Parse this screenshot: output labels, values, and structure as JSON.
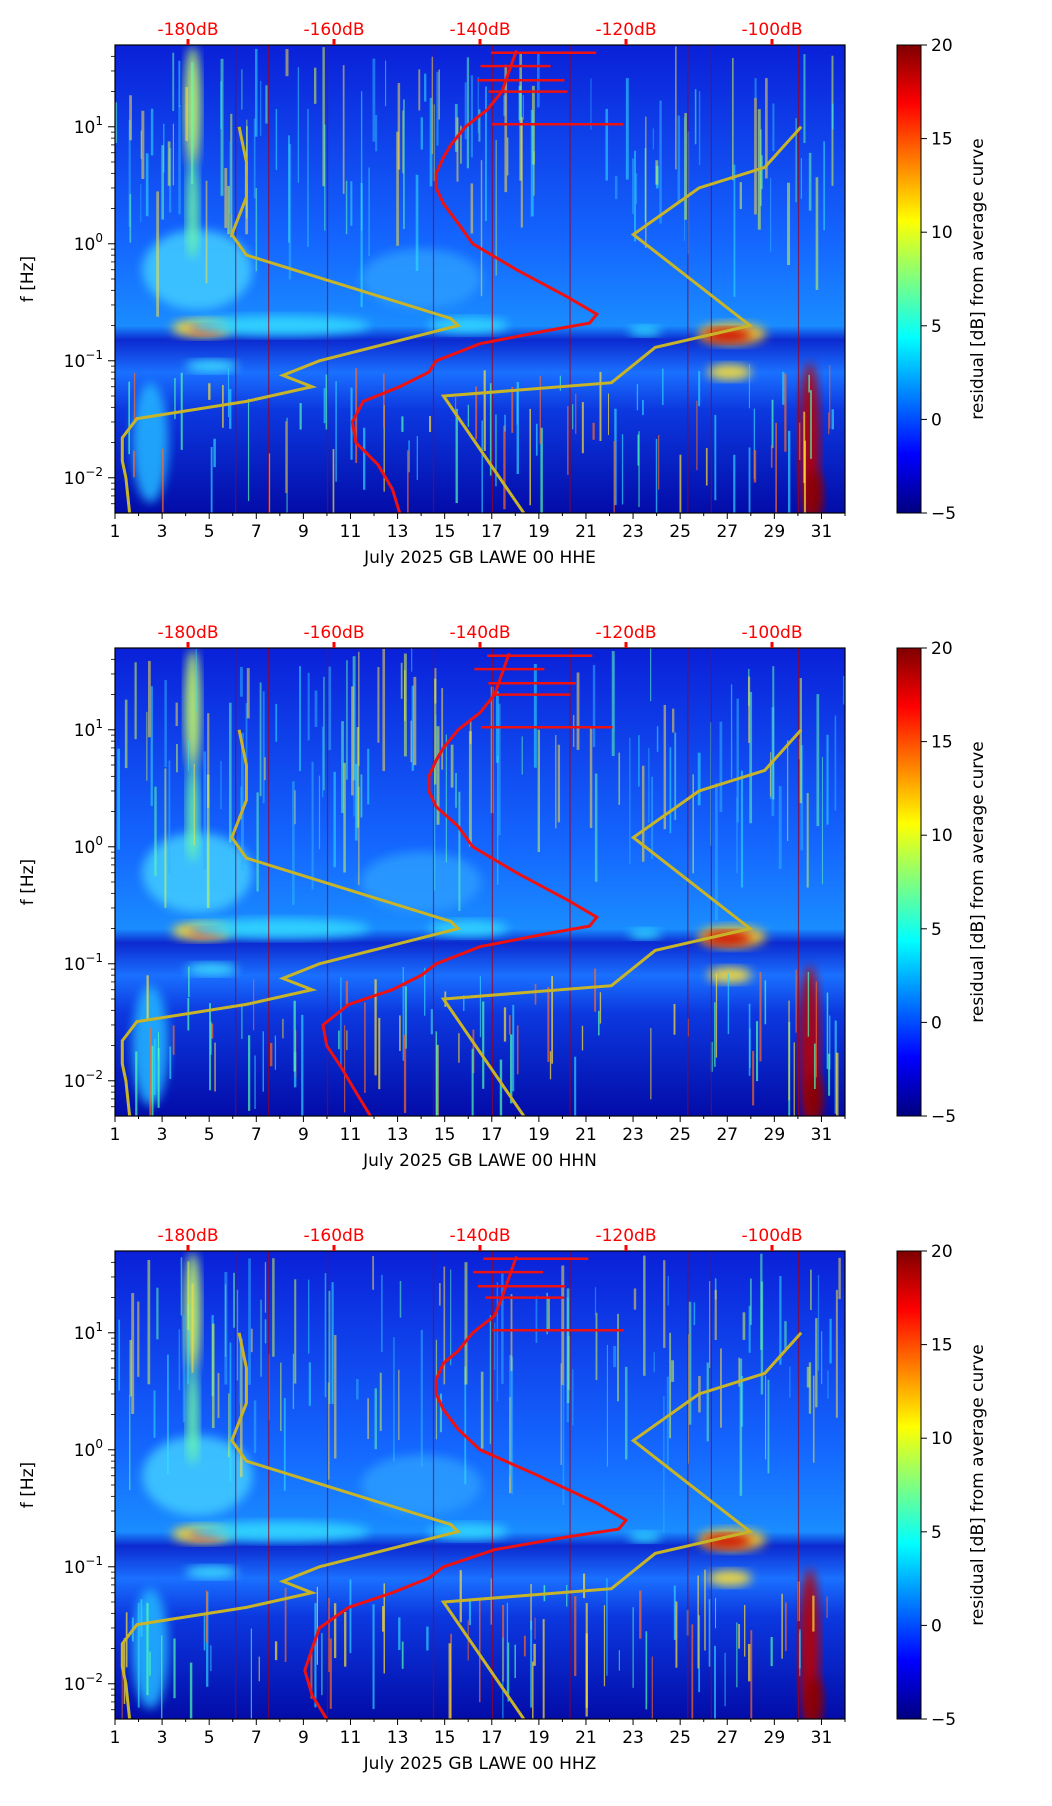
{
  "colors": {
    "db_axis": "#ff0000",
    "median_curve": "#ee1111",
    "noise_model": "#c8b428",
    "axis": "#000000"
  },
  "colormap": {
    "name": "jet",
    "stops": [
      "#00007f",
      "#0000ff",
      "#007fff",
      "#00ffff",
      "#7fff7f",
      "#ffff00",
      "#ff7f00",
      "#ff0000",
      "#7f0000"
    ]
  },
  "chart_data": [
    {
      "type": "heatmap",
      "title": "",
      "xlabel": "July 2025 GB LAWE 00 HHE",
      "ylabel": "f [Hz]",
      "xlim": [
        1,
        32
      ],
      "ylim": [
        0.005,
        50
      ],
      "yscale": "log",
      "x_ticks": [
        "1",
        "3",
        "5",
        "7",
        "9",
        "11",
        "13",
        "15",
        "17",
        "19",
        "21",
        "23",
        "25",
        "27",
        "29",
        "31"
      ],
      "y_ticks": [
        "10",
        "10",
        "10",
        "10"
      ],
      "y_tick_exponents": [
        "1",
        "0",
        "−1",
        "−2"
      ],
      "y_tick_values": [
        10,
        1,
        0.1,
        0.01
      ],
      "db_axis_labels": [
        "-180dB",
        "-160dB",
        "-140dB",
        "-120dB",
        "-100dB"
      ],
      "db_axis_values": [
        -180,
        -160,
        -140,
        -120,
        -100
      ],
      "db_axis_range": [
        -190,
        -90
      ],
      "colorbar_label": "residual [dB] from average curve",
      "colorbar_ticks": [
        "20",
        "15",
        "10",
        "5",
        "0",
        "−5"
      ],
      "colorbar_tick_values": [
        20,
        15,
        10,
        5,
        0,
        -5
      ],
      "colorbar_range": [
        -5,
        20
      ],
      "median_psd_curve": [
        [
          -151,
          0.005
        ],
        [
          -152,
          0.008
        ],
        [
          -154,
          0.013
        ],
        [
          -157,
          0.02
        ],
        [
          -157.5,
          0.03
        ],
        [
          -156,
          0.045
        ],
        [
          -151,
          0.06
        ],
        [
          -147,
          0.08
        ],
        [
          -146,
          0.1
        ],
        [
          -140,
          0.14
        ],
        [
          -131,
          0.18
        ],
        [
          -125,
          0.21
        ],
        [
          -124,
          0.25
        ],
        [
          -128,
          0.35
        ],
        [
          -135,
          0.6
        ],
        [
          -141,
          1
        ],
        [
          -143,
          1.5
        ],
        [
          -145,
          2.2
        ],
        [
          -146,
          3
        ],
        [
          -146,
          4
        ],
        [
          -145,
          5.5
        ],
        [
          -144,
          7
        ],
        [
          -142,
          10
        ],
        [
          -139,
          14
        ],
        [
          -137,
          20
        ],
        [
          -136,
          30
        ],
        [
          -135,
          45
        ]
      ],
      "noise_model_low": [
        [
          -188,
          0.005
        ],
        [
          -188.5,
          0.01
        ],
        [
          -189,
          0.014
        ],
        [
          -189,
          0.022
        ],
        [
          -187,
          0.032
        ],
        [
          -172,
          0.045
        ],
        [
          -163,
          0.06
        ],
        [
          -167,
          0.075
        ],
        [
          -162,
          0.1
        ],
        [
          -143,
          0.2
        ],
        [
          -144,
          0.23
        ],
        [
          -172,
          0.8
        ],
        [
          -174,
          1.2
        ],
        [
          -172,
          2.5
        ],
        [
          -172,
          5
        ],
        [
          -173,
          10
        ]
      ],
      "noise_model_high": [
        [
          -134,
          0.005
        ],
        [
          -145,
          0.05
        ],
        [
          -122,
          0.065
        ],
        [
          -116,
          0.13
        ],
        [
          -103,
          0.2
        ],
        [
          -119,
          1.2
        ],
        [
          -110,
          3
        ],
        [
          -101,
          4.5
        ],
        [
          -96,
          10
        ]
      ]
    },
    {
      "type": "heatmap",
      "title": "",
      "xlabel": "July 2025 GB LAWE 00 HHN",
      "ylabel": "f [Hz]",
      "xlim": [
        1,
        32
      ],
      "ylim": [
        0.005,
        50
      ],
      "yscale": "log",
      "x_ticks": [
        "1",
        "3",
        "5",
        "7",
        "9",
        "11",
        "13",
        "15",
        "17",
        "19",
        "21",
        "23",
        "25",
        "27",
        "29",
        "31"
      ],
      "y_ticks": [
        "10",
        "10",
        "10",
        "10"
      ],
      "y_tick_exponents": [
        "1",
        "0",
        "−1",
        "−2"
      ],
      "y_tick_values": [
        10,
        1,
        0.1,
        0.01
      ],
      "db_axis_labels": [
        "-180dB",
        "-160dB",
        "-140dB",
        "-120dB",
        "-100dB"
      ],
      "db_axis_values": [
        -180,
        -160,
        -140,
        -120,
        -100
      ],
      "db_axis_range": [
        -190,
        -90
      ],
      "colorbar_label": "residual [dB] from average curve",
      "colorbar_ticks": [
        "20",
        "15",
        "10",
        "5",
        "0",
        "−5"
      ],
      "colorbar_tick_values": [
        20,
        15,
        10,
        5,
        0,
        -5
      ],
      "colorbar_range": [
        -5,
        20
      ],
      "median_psd_curve": [
        [
          -155,
          0.005
        ],
        [
          -157,
          0.008
        ],
        [
          -159,
          0.013
        ],
        [
          -161,
          0.02
        ],
        [
          -161.5,
          0.03
        ],
        [
          -158,
          0.045
        ],
        [
          -152,
          0.06
        ],
        [
          -148,
          0.08
        ],
        [
          -146,
          0.1
        ],
        [
          -140,
          0.14
        ],
        [
          -131,
          0.18
        ],
        [
          -125,
          0.21
        ],
        [
          -124,
          0.25
        ],
        [
          -128,
          0.35
        ],
        [
          -135,
          0.6
        ],
        [
          -141,
          1
        ],
        [
          -143,
          1.5
        ],
        [
          -146,
          2.2
        ],
        [
          -147,
          3
        ],
        [
          -147,
          4
        ],
        [
          -146,
          5.5
        ],
        [
          -145,
          7
        ],
        [
          -143,
          10
        ],
        [
          -140,
          14
        ],
        [
          -138,
          20
        ],
        [
          -137,
          30
        ],
        [
          -136,
          45
        ]
      ],
      "noise_model_low": [
        [
          -188,
          0.005
        ],
        [
          -188.5,
          0.01
        ],
        [
          -189,
          0.014
        ],
        [
          -189,
          0.022
        ],
        [
          -187,
          0.032
        ],
        [
          -172,
          0.045
        ],
        [
          -163,
          0.06
        ],
        [
          -167,
          0.075
        ],
        [
          -162,
          0.1
        ],
        [
          -143,
          0.2
        ],
        [
          -144,
          0.23
        ],
        [
          -172,
          0.8
        ],
        [
          -174,
          1.2
        ],
        [
          -172,
          2.5
        ],
        [
          -172,
          5
        ],
        [
          -173,
          10
        ]
      ],
      "noise_model_high": [
        [
          -134,
          0.005
        ],
        [
          -145,
          0.05
        ],
        [
          -122,
          0.065
        ],
        [
          -116,
          0.13
        ],
        [
          -103,
          0.2
        ],
        [
          -119,
          1.2
        ],
        [
          -110,
          3
        ],
        [
          -101,
          4.5
        ],
        [
          -96,
          10
        ]
      ]
    },
    {
      "type": "heatmap",
      "title": "",
      "xlabel": "July 2025 GB LAWE 00 HHZ",
      "ylabel": "f [Hz]",
      "xlim": [
        1,
        32
      ],
      "ylim": [
        0.005,
        50
      ],
      "yscale": "log",
      "x_ticks": [
        "1",
        "3",
        "5",
        "7",
        "9",
        "11",
        "13",
        "15",
        "17",
        "19",
        "21",
        "23",
        "25",
        "27",
        "29",
        "31"
      ],
      "y_ticks": [
        "10",
        "10",
        "10",
        "10"
      ],
      "y_tick_exponents": [
        "1",
        "0",
        "−1",
        "−2"
      ],
      "y_tick_values": [
        10,
        1,
        0.1,
        0.01
      ],
      "db_axis_labels": [
        "-180dB",
        "-160dB",
        "-140dB",
        "-120dB",
        "-100dB"
      ],
      "db_axis_values": [
        -180,
        -160,
        -140,
        -120,
        -100
      ],
      "db_axis_range": [
        -190,
        -90
      ],
      "colorbar_label": "residual [dB] from average curve",
      "colorbar_ticks": [
        "20",
        "15",
        "10",
        "5",
        "0",
        "−5"
      ],
      "colorbar_tick_values": [
        20,
        15,
        10,
        5,
        0,
        -5
      ],
      "colorbar_range": [
        -5,
        20
      ],
      "median_psd_curve": [
        [
          -161,
          0.005
        ],
        [
          -163,
          0.008
        ],
        [
          -164,
          0.013
        ],
        [
          -163,
          0.02
        ],
        [
          -162,
          0.03
        ],
        [
          -158,
          0.045
        ],
        [
          -152,
          0.06
        ],
        [
          -147,
          0.08
        ],
        [
          -145,
          0.1
        ],
        [
          -138,
          0.14
        ],
        [
          -128,
          0.18
        ],
        [
          -121,
          0.21
        ],
        [
          -120,
          0.25
        ],
        [
          -124,
          0.35
        ],
        [
          -132,
          0.6
        ],
        [
          -140,
          1
        ],
        [
          -143,
          1.5
        ],
        [
          -145,
          2.2
        ],
        [
          -146,
          3
        ],
        [
          -146,
          4
        ],
        [
          -145,
          5.5
        ],
        [
          -143,
          7
        ],
        [
          -141,
          10
        ],
        [
          -138,
          14
        ],
        [
          -137,
          20
        ],
        [
          -136,
          30
        ],
        [
          -135,
          45
        ]
      ],
      "noise_model_low": [
        [
          -188,
          0.005
        ],
        [
          -188.5,
          0.01
        ],
        [
          -189,
          0.014
        ],
        [
          -189,
          0.022
        ],
        [
          -187,
          0.032
        ],
        [
          -172,
          0.045
        ],
        [
          -163,
          0.06
        ],
        [
          -167,
          0.075
        ],
        [
          -162,
          0.1
        ],
        [
          -143,
          0.2
        ],
        [
          -144,
          0.23
        ],
        [
          -172,
          0.8
        ],
        [
          -174,
          1.2
        ],
        [
          -172,
          2.5
        ],
        [
          -172,
          5
        ],
        [
          -173,
          10
        ]
      ],
      "noise_model_high": [
        [
          -134,
          0.005
        ],
        [
          -145,
          0.05
        ],
        [
          -122,
          0.065
        ],
        [
          -116,
          0.13
        ],
        [
          -103,
          0.2
        ],
        [
          -119,
          1.2
        ],
        [
          -110,
          3
        ],
        [
          -101,
          4.5
        ],
        [
          -96,
          10
        ]
      ]
    }
  ]
}
